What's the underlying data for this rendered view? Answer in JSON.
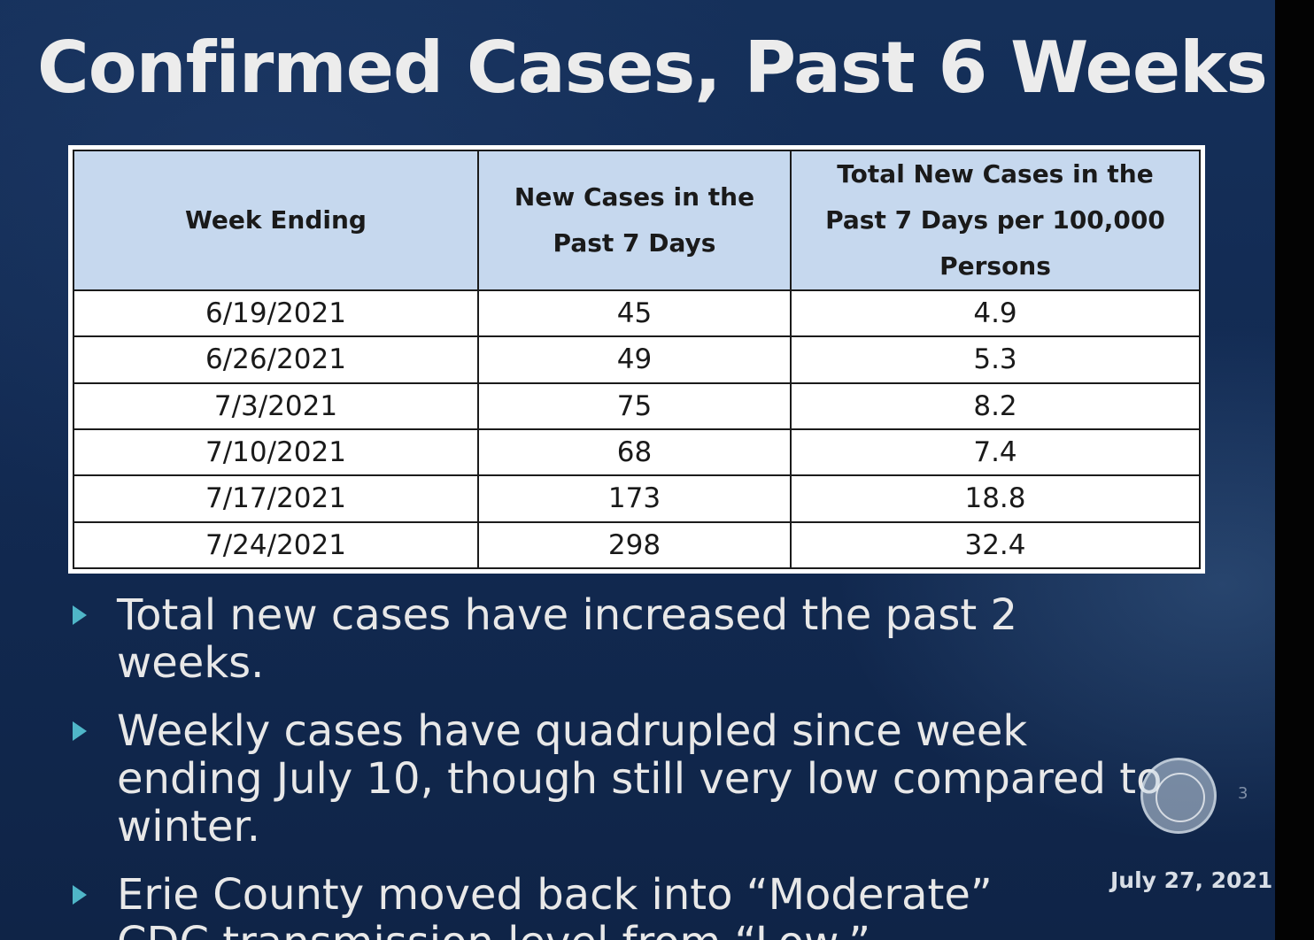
{
  "slide": {
    "title": "Confirmed Cases, Past 6 Weeks",
    "table": {
      "headers": [
        "Week Ending",
        "New Cases in the Past 7 Days",
        "Total New Cases in the Past 7 Days per 100,000 Persons"
      ],
      "rows": [
        [
          "6/19/2021",
          "45",
          "4.9"
        ],
        [
          "6/26/2021",
          "49",
          "5.3"
        ],
        [
          "7/3/2021",
          "75",
          "8.2"
        ],
        [
          "7/10/2021",
          "68",
          "7.4"
        ],
        [
          "7/17/2021",
          "173",
          "18.8"
        ],
        [
          "7/24/2021",
          "298",
          "32.4"
        ]
      ]
    },
    "bullets": [
      "Total new cases have increased the past 2 weeks.",
      "Weekly cases have quadrupled since week ending July 10, though still very low compared to winter.",
      "Erie County moved back into “Moderate” CDC transmission level from “Low.”"
    ],
    "page_number": "3",
    "date": "July 27, 2021"
  },
  "colors": {
    "background": "#122a52",
    "header_fill": "#c6d8ee",
    "bullet_arrow": "#4fb6c8"
  }
}
